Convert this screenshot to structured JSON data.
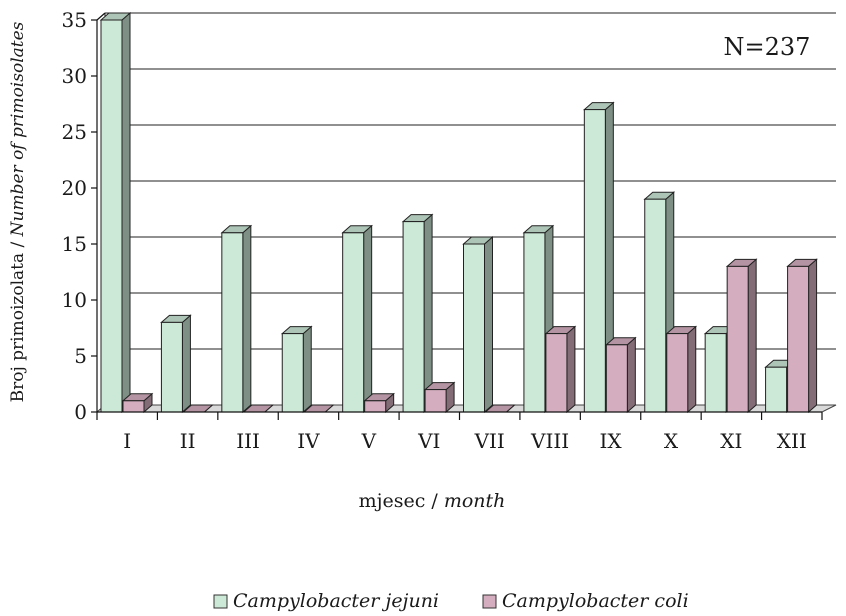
{
  "chart_data": {
    "type": "bar",
    "categories": [
      "I",
      "II",
      "III",
      "IV",
      "V",
      "VI",
      "VII",
      "VIII",
      "IX",
      "X",
      "XI",
      "XII"
    ],
    "series": [
      {
        "name": "Campylobacter jejuni",
        "values": [
          35,
          8,
          16,
          7,
          16,
          17,
          15,
          16,
          27,
          19,
          7,
          4
        ],
        "color": "#cce8d6"
      },
      {
        "name": "Campylobacter coli",
        "values": [
          1,
          0,
          0,
          0,
          1,
          2,
          0,
          7,
          6,
          7,
          13,
          13
        ],
        "color": "#d4aebf"
      }
    ],
    "yticks": [
      "0",
      "5",
      "10",
      "15",
      "20",
      "25",
      "30",
      "35"
    ],
    "ylim": [
      0,
      35
    ],
    "ylabel_main": "Broj primoizolata / ",
    "ylabel_italic": "Number of primoisolates",
    "xlabel_main": "mjesec / ",
    "xlabel_italic": "month",
    "annotation": "N=237",
    "grid": true,
    "legend_position": "bottom",
    "style": "3d"
  }
}
